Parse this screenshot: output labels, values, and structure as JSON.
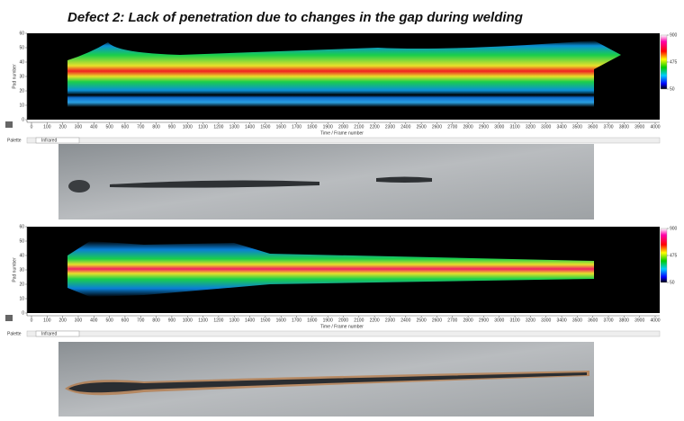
{
  "title": "Defect 2: Lack of penetration due to changes in the gap during welding",
  "panels": [
    {
      "ylabel": "Pad number",
      "xlabel": "Time / Frame number",
      "palette_label": "Palette",
      "palette_value": "Infrared",
      "xlim": [
        0,
        4000
      ],
      "xticks": [
        0,
        100,
        200,
        300,
        400,
        500,
        600,
        700,
        800,
        900,
        1000,
        1100,
        1200,
        1300,
        1400,
        1500,
        1600,
        1700,
        1800,
        1900,
        2000,
        2100,
        2200,
        2300,
        2400,
        2500,
        2600,
        2700,
        2800,
        2900,
        3000,
        3100,
        3200,
        3300,
        3400,
        3500,
        3600,
        3700,
        3800,
        3900,
        4000
      ],
      "ylim": [
        0,
        60
      ],
      "yticks": [
        0,
        10,
        20,
        30,
        40,
        50,
        60
      ],
      "colorbar": {
        "lim": [
          50,
          900
        ],
        "ticks": [
          50,
          475,
          900
        ]
      }
    },
    {
      "ylabel": "Pad number",
      "xlabel": "Time / Frame number",
      "palette_label": "Palette",
      "palette_value": "Infrared",
      "xlim": [
        0,
        4000
      ],
      "xticks": [
        0,
        100,
        200,
        300,
        400,
        500,
        600,
        700,
        800,
        900,
        1000,
        1100,
        1200,
        1300,
        1400,
        1500,
        1600,
        1700,
        1800,
        1900,
        2000,
        2100,
        2200,
        2300,
        2400,
        2500,
        2600,
        2700,
        2800,
        2900,
        3000,
        3100,
        3200,
        3300,
        3400,
        3500,
        3600,
        3700,
        3800,
        3900,
        4000
      ],
      "ylim": [
        0,
        60
      ],
      "yticks": [
        0,
        10,
        20,
        30,
        40,
        50,
        60
      ],
      "colorbar": {
        "lim": [
          50,
          900
        ],
        "ticks": [
          50,
          475,
          900
        ]
      }
    }
  ]
}
